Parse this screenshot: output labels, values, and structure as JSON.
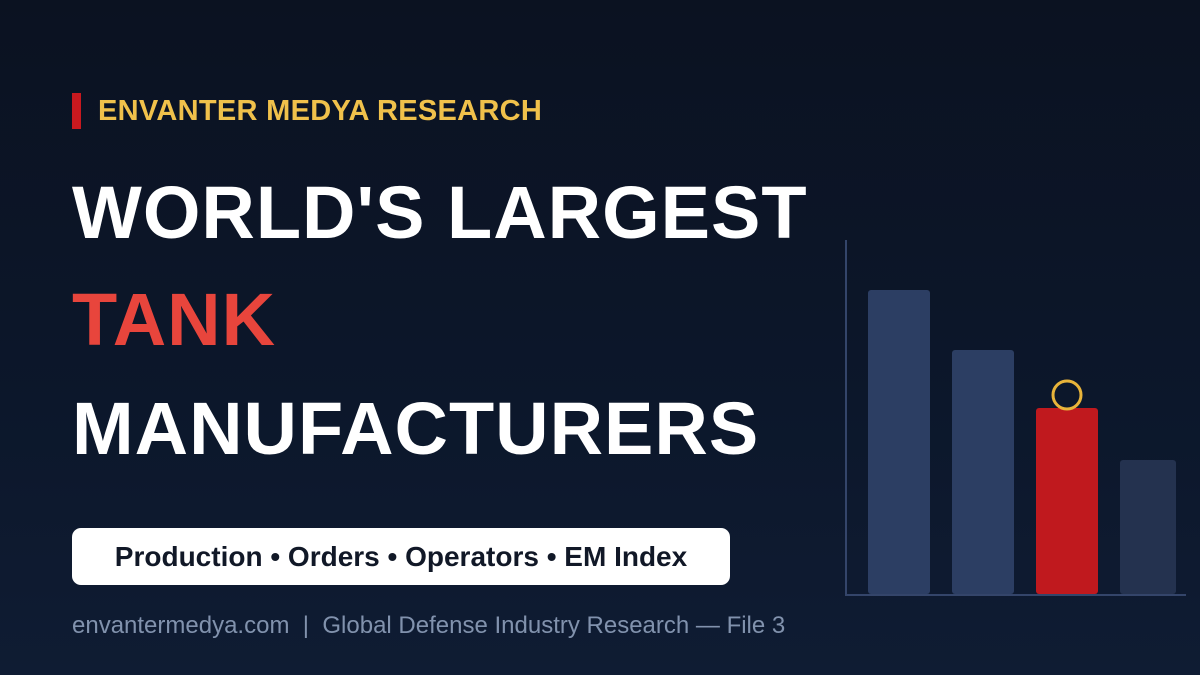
{
  "kicker": "ENVANTER MEDYA RESEARCH",
  "title": {
    "line1": "WORLD'S LARGEST",
    "line2": "TANK",
    "line3": "MANUFACTURERS"
  },
  "tagline": "Production • Orders • Operators • EM Index",
  "footer": {
    "site": "envantermedya.com",
    "separator": "|",
    "description": "Global Defense Industry Research — File 3"
  }
}
